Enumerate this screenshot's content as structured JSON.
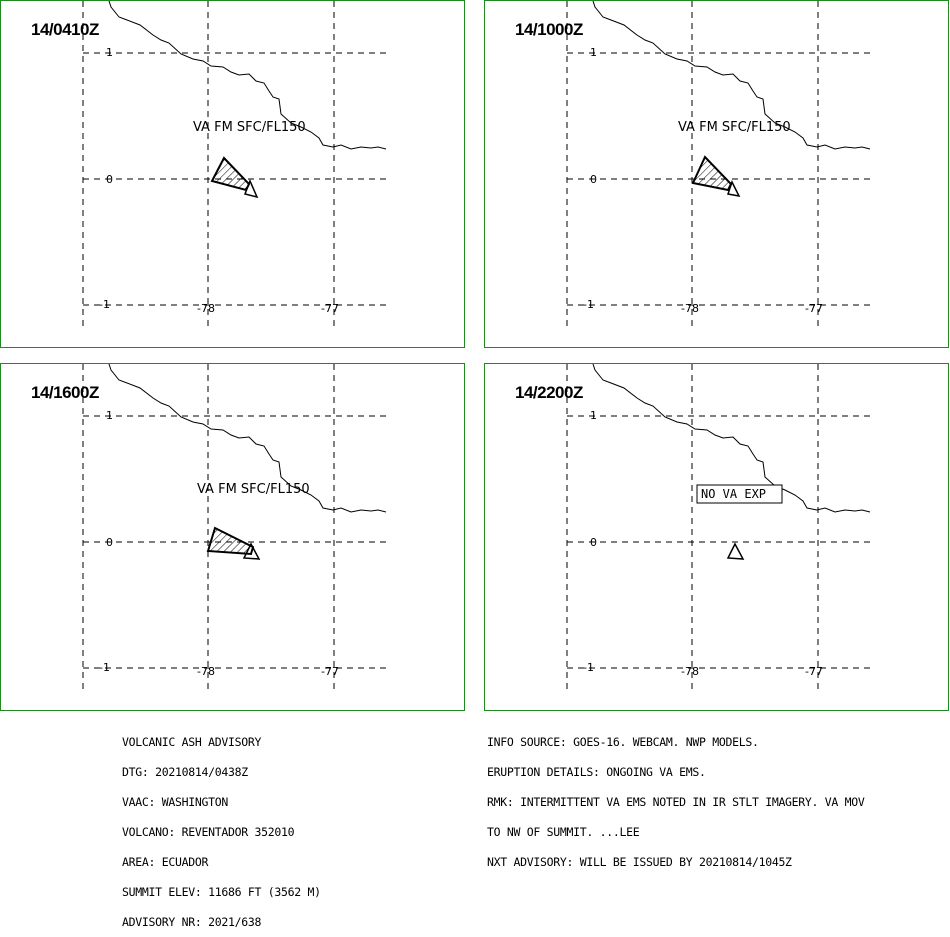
{
  "panels": [
    {
      "time": "14/0410Z",
      "label": "VA FM SFC/FL150",
      "boxed": false,
      "plume": true
    },
    {
      "time": "14/1000Z",
      "label": "VA FM SFC/FL150",
      "boxed": false,
      "plume": true
    },
    {
      "time": "14/1600Z",
      "label": "VA FM SFC/FL150",
      "boxed": false,
      "plume": true
    },
    {
      "time": "14/2200Z",
      "label": "NO VA EXP",
      "boxed": true,
      "plume": false
    }
  ],
  "axes": {
    "lat_ticks": [
      "1",
      "0",
      "-1"
    ],
    "lon_ticks": [
      "-78",
      "-77"
    ]
  },
  "advisory_left": [
    "VOLCANIC ASH ADVISORY",
    "DTG: 20210814/0438Z",
    "VAAC: WASHINGTON",
    "VOLCANO: REVENTADOR 352010",
    "AREA: ECUADOR",
    "SUMMIT ELEV: 11686 FT (3562 M)",
    "ADVISORY NR: 2021/638"
  ],
  "advisory_right": [
    "INFO SOURCE: GOES-16. WEBCAM. NWP MODELS.",
    "ERUPTION DETAILS: ONGOING VA EMS.",
    "RMK: INTERMITTENT VA EMS NOTED IN IR STLT IMAGERY. VA MOV",
    "TO NW OF SUMMIT. ...LEE",
    "NXT ADVISORY: WILL BE ISSUED BY 20210814/1045Z"
  ],
  "colors": {
    "frame": "#1f8a1f",
    "ink": "#000000"
  }
}
